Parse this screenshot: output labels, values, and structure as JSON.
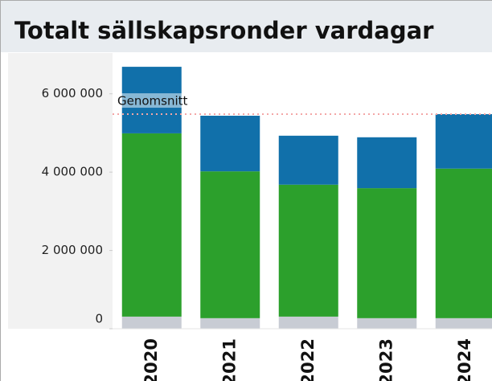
{
  "chart_data": {
    "type": "stacked_bar",
    "title": "Totalt sällskapsronder vardagar",
    "categories": [
      "2020",
      "2021",
      "2022",
      "2023",
      "2024"
    ],
    "series": [
      {
        "color": "#c8ccd4",
        "values": [
          310000,
          270000,
          310000,
          270000,
          270000
        ]
      },
      {
        "color": "#2ca02c",
        "values": [
          4680000,
          3750000,
          3370000,
          3320000,
          3820000
        ]
      },
      {
        "color": "#1170aa",
        "values": [
          1700000,
          1420000,
          1250000,
          1300000,
          1390000
        ]
      }
    ],
    "reference_line": {
      "label": "Genomsnitt",
      "value": 5480000,
      "color": "#f4a6a6"
    },
    "ylim": [
      0,
      7000000
    ],
    "yticks": [
      0,
      {
        "value": 2000000,
        "label": "2 000 000"
      },
      {
        "value": 4000000,
        "label": "4 000 000"
      },
      {
        "value": 6000000,
        "label": "6 000 000"
      }
    ]
  }
}
